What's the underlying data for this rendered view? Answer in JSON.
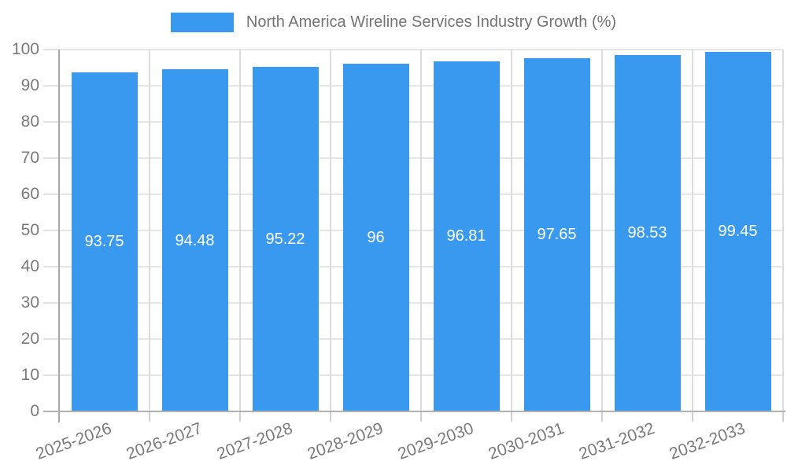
{
  "chart_data": {
    "type": "bar",
    "legend": "North America Wireline Services Industry Growth (%)",
    "legend_position": "top",
    "categories": [
      "2025-2026",
      "2026-2027",
      "2027-2028",
      "2028-2029",
      "2029-2030",
      "2030-2031",
      "2031-2032",
      "2032-2033"
    ],
    "values": [
      93.75,
      94.48,
      95.22,
      96,
      96.81,
      97.65,
      98.53,
      99.45
    ],
    "title": "",
    "xlabel": "",
    "ylabel": "",
    "ylim": [
      0,
      100
    ],
    "ytick_step": 10,
    "yticks": [
      0,
      10,
      20,
      30,
      40,
      50,
      60,
      70,
      80,
      90,
      100
    ],
    "grid": true,
    "value_labels_inside_bars": true,
    "colors": {
      "bar": "#3899EE",
      "bar_value_label": "#ffffff",
      "axis_line": "#a8a8a8",
      "gridline": "#e2e2e2",
      "tick_label": "#7a7a7a",
      "legend_text": "#737373",
      "background": "#ffffff"
    }
  }
}
